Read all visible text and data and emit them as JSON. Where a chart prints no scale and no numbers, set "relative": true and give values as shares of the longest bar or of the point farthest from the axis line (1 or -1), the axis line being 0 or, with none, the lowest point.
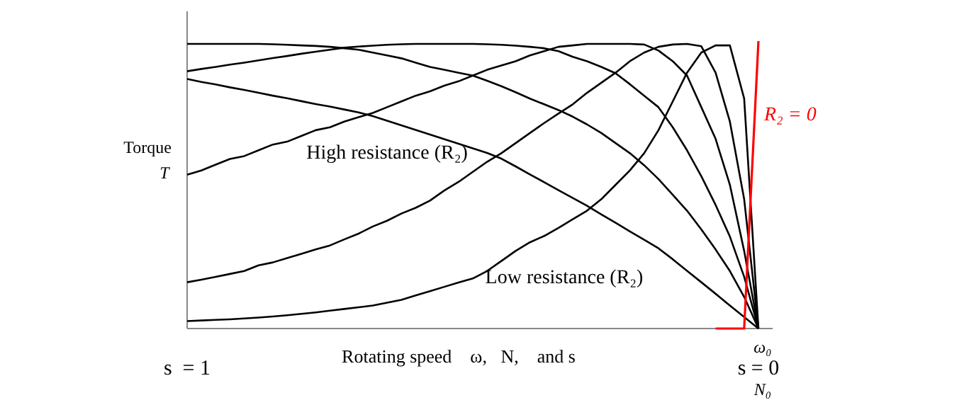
{
  "chart_data": {
    "type": "line",
    "relative": true,
    "ylabel": "Torque\nT",
    "xlabel": "Rotating speed    ω,   N,    and s",
    "categories": [
      null,
      null,
      null,
      null,
      null,
      null,
      null,
      null,
      null,
      null,
      null,
      null,
      null,
      null,
      null,
      null,
      null,
      null,
      null,
      null,
      null,
      null,
      null,
      null,
      null,
      null,
      null,
      null,
      null,
      null,
      null,
      null,
      null,
      null,
      null,
      null,
      null,
      null,
      null,
      null,
      null
    ],
    "annotations": [
      "High resistance (R₂)",
      "Low resistance (R₂)",
      "s  = 1",
      "s = 0",
      "ω₀",
      "N₀"
    ],
    "series": [
      {
        "color": "#000000",
        "values": [
          0.99,
          0.99,
          0.99,
          0.99,
          0.99,
          0.99,
          0.989,
          0.987,
          0.985,
          0.983,
          0.98,
          0.975,
          0.97,
          0.96,
          0.95,
          0.94,
          0.925,
          0.91,
          0.9,
          0.89,
          0.88,
          0.862,
          0.843,
          0.822,
          0.8,
          0.78,
          0.76,
          0.737,
          0.71,
          0.68,
          0.645,
          0.61,
          0.568,
          0.52,
          0.465,
          0.41,
          0.345,
          0.275,
          0.2,
          0.11,
          0
        ]
      },
      {
        "color": "#000000",
        "values": [
          0.895,
          0.903,
          0.91,
          0.918,
          0.925,
          0.933,
          0.941,
          0.948,
          0.956,
          0.963,
          0.97,
          0.977,
          0.981,
          0.984,
          0.987,
          0.989,
          0.99,
          0.99,
          0.99,
          0.99,
          0.99,
          0.989,
          0.987,
          0.984,
          0.98,
          0.975,
          0.965,
          0.945,
          0.93,
          0.91,
          0.888,
          0.85,
          0.81,
          0.77,
          0.7,
          0.62,
          0.53,
          0.43,
          0.32,
          0.18,
          0
        ]
      },
      {
        "color": "#000000",
        "values": [
          0.868,
          0.858,
          0.849,
          0.839,
          0.83,
          0.82,
          0.81,
          0.801,
          0.791,
          0.781,
          0.772,
          0.762,
          0.752,
          0.739,
          0.723,
          0.707,
          0.691,
          0.675,
          0.659,
          0.643,
          0.627,
          0.611,
          0.591,
          0.564,
          0.536,
          0.509,
          0.481,
          0.454,
          0.427,
          0.397,
          0.368,
          0.338,
          0.309,
          0.279,
          0.241,
          0.201,
          0.161,
          0.121,
          0.08,
          0.04,
          0
        ]
      },
      {
        "color": "#000000",
        "values": [
          0.535,
          0.55,
          0.57,
          0.59,
          0.6,
          0.62,
          0.64,
          0.65,
          0.67,
          0.69,
          0.7,
          0.72,
          0.735,
          0.75,
          0.77,
          0.79,
          0.81,
          0.825,
          0.845,
          0.86,
          0.88,
          0.9,
          0.915,
          0.93,
          0.95,
          0.965,
          0.98,
          0.985,
          0.99,
          0.99,
          0.99,
          0.99,
          0.988,
          0.967,
          0.93,
          0.88,
          0.77,
          0.66,
          0.5,
          0.27,
          0
        ]
      },
      {
        "color": "#000000",
        "values": [
          0.161,
          0.17,
          0.18,
          0.19,
          0.2,
          0.22,
          0.23,
          0.245,
          0.26,
          0.275,
          0.289,
          0.31,
          0.33,
          0.355,
          0.375,
          0.4,
          0.42,
          0.445,
          0.48,
          0.51,
          0.545,
          0.58,
          0.61,
          0.645,
          0.68,
          0.715,
          0.748,
          0.78,
          0.82,
          0.855,
          0.89,
          0.93,
          0.96,
          0.98,
          0.988,
          0.99,
          0.982,
          0.89,
          0.72,
          0.45,
          0
        ]
      },
      {
        "color": "#000000",
        "values": [
          0.026,
          0.028,
          0.03,
          0.032,
          0.035,
          0.038,
          0.042,
          0.046,
          0.051,
          0.056,
          0.062,
          0.068,
          0.074,
          0.08,
          0.09,
          0.1,
          0.115,
          0.13,
          0.145,
          0.16,
          0.174,
          0.2,
          0.235,
          0.27,
          0.3,
          0.322,
          0.35,
          0.38,
          0.41,
          0.45,
          0.5,
          0.55,
          0.61,
          0.69,
          0.79,
          0.89,
          0.96,
          0.985,
          0.985,
          0.8,
          0
        ]
      },
      {
        "name": "R₂ = 0",
        "color": "#ff0000",
        "values": [
          null,
          null,
          null,
          null,
          null,
          null,
          null,
          null,
          null,
          null,
          null,
          null,
          null,
          null,
          null,
          null,
          null,
          null,
          null,
          null,
          null,
          null,
          null,
          null,
          null,
          null,
          null,
          null,
          null,
          null,
          null,
          null,
          null,
          null,
          null,
          null,
          null,
          0,
          0,
          0,
          1
        ]
      }
    ]
  }
}
